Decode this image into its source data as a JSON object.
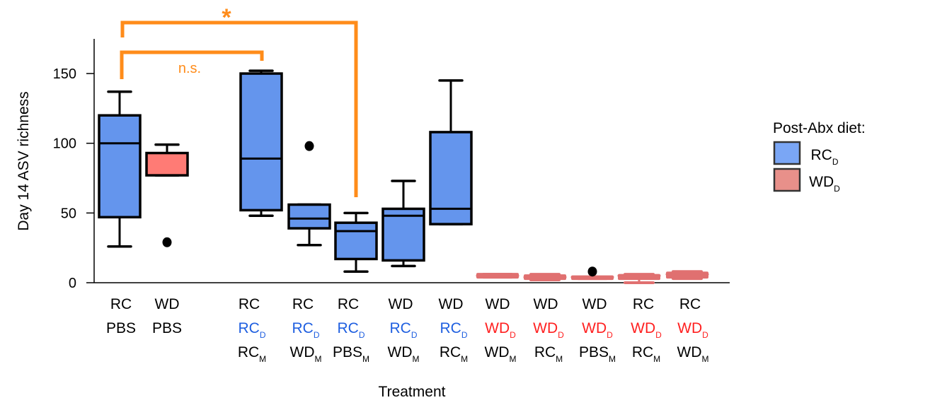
{
  "chart_data": {
    "type": "box",
    "title": "",
    "xlabel": "Treatment",
    "ylabel": "Day 14 ASV richness",
    "ylim": [
      0,
      175
    ],
    "yticks": [
      0,
      50,
      100,
      150
    ],
    "grid": false,
    "colors": {
      "RC_D": "#6495ed",
      "WD_D": "#ff7b75",
      "WD_D_small": "#e07070",
      "bracket": "#ff8c1a",
      "blue_text": "#1f5fe0",
      "red_text": "#ff2020"
    },
    "categories": [
      {
        "l1": "RC",
        "l2": "PBS",
        "l2sub": "",
        "l2color": "black",
        "l3": "",
        "l3sub": "",
        "diet": "RC_D"
      },
      {
        "l1": "WD",
        "l2": "PBS",
        "l2sub": "",
        "l2color": "black",
        "l3": "",
        "l3sub": "",
        "diet": "WD_D"
      },
      {
        "l1": "RC",
        "l2": "RC",
        "l2sub": "D",
        "l2color": "blue",
        "l3": "RC",
        "l3sub": "M",
        "diet": "RC_D"
      },
      {
        "l1": "RC",
        "l2": "RC",
        "l2sub": "D",
        "l2color": "blue",
        "l3": "WD",
        "l3sub": "M",
        "diet": "RC_D"
      },
      {
        "l1": "RC",
        "l2": "RC",
        "l2sub": "D",
        "l2color": "blue",
        "l3": "PBS",
        "l3sub": "M",
        "diet": "RC_D"
      },
      {
        "l1": "WD",
        "l2": "RC",
        "l2sub": "D",
        "l2color": "blue",
        "l3": "WD",
        "l3sub": "M",
        "diet": "RC_D"
      },
      {
        "l1": "WD",
        "l2": "RC",
        "l2sub": "D",
        "l2color": "blue",
        "l3": "RC",
        "l3sub": "M",
        "diet": "RC_D"
      },
      {
        "l1": "WD",
        "l2": "WD",
        "l2sub": "D",
        "l2color": "red",
        "l3": "WD",
        "l3sub": "M",
        "diet": "WD_D"
      },
      {
        "l1": "WD",
        "l2": "WD",
        "l2sub": "D",
        "l2color": "red",
        "l3": "RC",
        "l3sub": "M",
        "diet": "WD_D"
      },
      {
        "l1": "WD",
        "l2": "WD",
        "l2sub": "D",
        "l2color": "red",
        "l3": "PBS",
        "l3sub": "M",
        "diet": "WD_D"
      },
      {
        "l1": "RC",
        "l2": "WD",
        "l2sub": "D",
        "l2color": "red",
        "l3": "RC",
        "l3sub": "M",
        "diet": "WD_D"
      },
      {
        "l1": "RC",
        "l2": "WD",
        "l2sub": "D",
        "l2color": "red",
        "l3": "WD",
        "l3sub": "M",
        "diet": "WD_D"
      }
    ],
    "boxes": [
      {
        "min": 26,
        "q1": 47,
        "median": 100,
        "q3": 120,
        "max": 137,
        "outliers": []
      },
      {
        "min": 77,
        "q1": 77,
        "median": 93,
        "q3": 93,
        "max": 99,
        "outliers": [
          29
        ]
      },
      {
        "min": 48,
        "q1": 52,
        "median": 89,
        "q3": 150,
        "max": 152,
        "outliers": []
      },
      {
        "min": 27,
        "q1": 39,
        "median": 46,
        "q3": 56,
        "max": 56,
        "outliers": [
          98
        ]
      },
      {
        "min": 8,
        "q1": 17,
        "median": 37,
        "q3": 43,
        "max": 50,
        "outliers": []
      },
      {
        "min": 12,
        "q1": 16,
        "median": 48,
        "q3": 53,
        "max": 73,
        "outliers": []
      },
      {
        "min": 42,
        "q1": 42,
        "median": 53,
        "q3": 108,
        "max": 145,
        "outliers": []
      },
      {
        "min": 4,
        "q1": 4,
        "median": 5,
        "q3": 6,
        "max": 6,
        "outliers": []
      },
      {
        "min": 2,
        "q1": 3,
        "median": 4,
        "q3": 5,
        "max": 6,
        "outliers": []
      },
      {
        "min": 3,
        "q1": 3,
        "median": 4,
        "q3": 4,
        "max": 4,
        "outliers": [
          8
        ]
      },
      {
        "min": 0,
        "q1": 3,
        "median": 5,
        "q3": 5,
        "max": 6,
        "outliers": []
      },
      {
        "min": 3,
        "q1": 4,
        "median": 6,
        "q3": 7,
        "max": 8,
        "outliers": []
      }
    ],
    "annotations": [
      {
        "label": "n.s.",
        "from": 0,
        "to": 2
      },
      {
        "label": "*",
        "from": 0,
        "to": 4
      }
    ],
    "legend": {
      "title": "Post-Abx diet:",
      "placement": "right",
      "entries": [
        {
          "label": "RC",
          "sub": "D",
          "color": "#7aa6f5"
        },
        {
          "label": "WD",
          "sub": "D",
          "color": "#e8908a"
        }
      ]
    }
  }
}
